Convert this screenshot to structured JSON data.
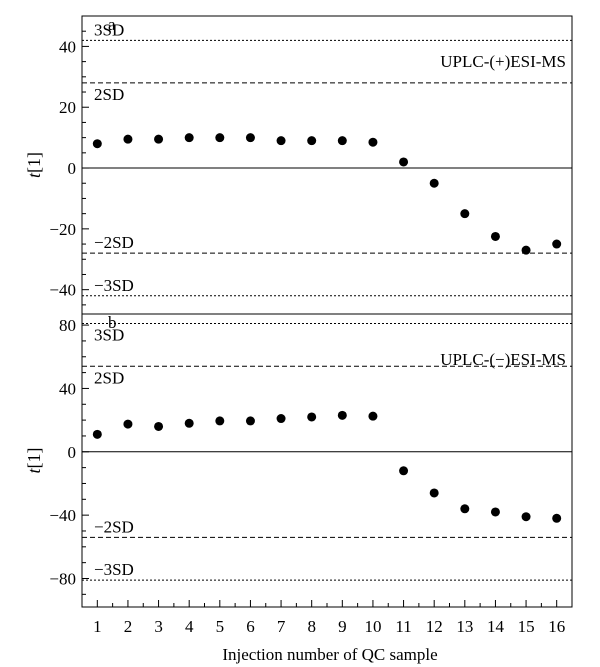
{
  "figure": {
    "xlabel": "Injection number of QC sample",
    "x_ticks": [
      1,
      2,
      3,
      4,
      5,
      6,
      7,
      8,
      9,
      10,
      11,
      12,
      13,
      14,
      15,
      16
    ]
  },
  "chart_data": [
    {
      "type": "scatter",
      "panel_label": "a",
      "mode_label": "UPLC-(+)ESI-MS",
      "ylabel_italic": "t",
      "ylabel_rest": "[1]",
      "x": [
        1,
        2,
        3,
        4,
        5,
        6,
        7,
        8,
        9,
        10,
        11,
        12,
        13,
        14,
        15,
        16
      ],
      "y": [
        8,
        9.5,
        9.5,
        10,
        10,
        10,
        9,
        9,
        9,
        8.5,
        2,
        -5,
        -15,
        -22.5,
        -27,
        -25
      ],
      "ylim": [
        -48,
        50
      ],
      "y_ticks": [
        -40,
        -20,
        0,
        20,
        40
      ],
      "xlim": [
        0.5,
        16.5
      ],
      "grid": false,
      "ref_lines": [
        {
          "label": "3SD",
          "y": 42,
          "style": "dotted",
          "label_side": "above"
        },
        {
          "label": "2SD",
          "y": 28,
          "style": "dashed",
          "label_side": "below"
        },
        {
          "label": "0",
          "y": 0,
          "style": "solid",
          "label_side": "none"
        },
        {
          "label": "−2SD",
          "y": -28,
          "style": "dashed",
          "label_side": "above"
        },
        {
          "label": "−3SD",
          "y": -42,
          "style": "dotted",
          "label_side": "above"
        }
      ]
    },
    {
      "type": "scatter",
      "panel_label": "b",
      "mode_label": "UPLC-(−)ESI-MS",
      "ylabel_italic": "t",
      "ylabel_rest": "[1]",
      "x": [
        1,
        2,
        3,
        4,
        5,
        6,
        7,
        8,
        9,
        10,
        11,
        12,
        13,
        14,
        15,
        16
      ],
      "y": [
        11,
        17.5,
        16,
        18,
        19.5,
        19.5,
        21,
        22,
        23,
        22.5,
        -12,
        -26,
        -36,
        -38,
        -41,
        -42
      ],
      "ylim": [
        -98,
        87
      ],
      "y_ticks": [
        -80,
        -40,
        0,
        40,
        80
      ],
      "xlim": [
        0.5,
        16.5
      ],
      "grid": false,
      "ref_lines": [
        {
          "label": "3SD",
          "y": 81,
          "style": "dotted",
          "label_side": "below"
        },
        {
          "label": "2SD",
          "y": 54,
          "style": "dashed",
          "label_side": "below"
        },
        {
          "label": "0",
          "y": 0,
          "style": "solid",
          "label_side": "none"
        },
        {
          "label": "−2SD",
          "y": -54,
          "style": "dashed",
          "label_side": "above"
        },
        {
          "label": "−3SD",
          "y": -81,
          "style": "dotted",
          "label_side": "above"
        }
      ]
    }
  ]
}
